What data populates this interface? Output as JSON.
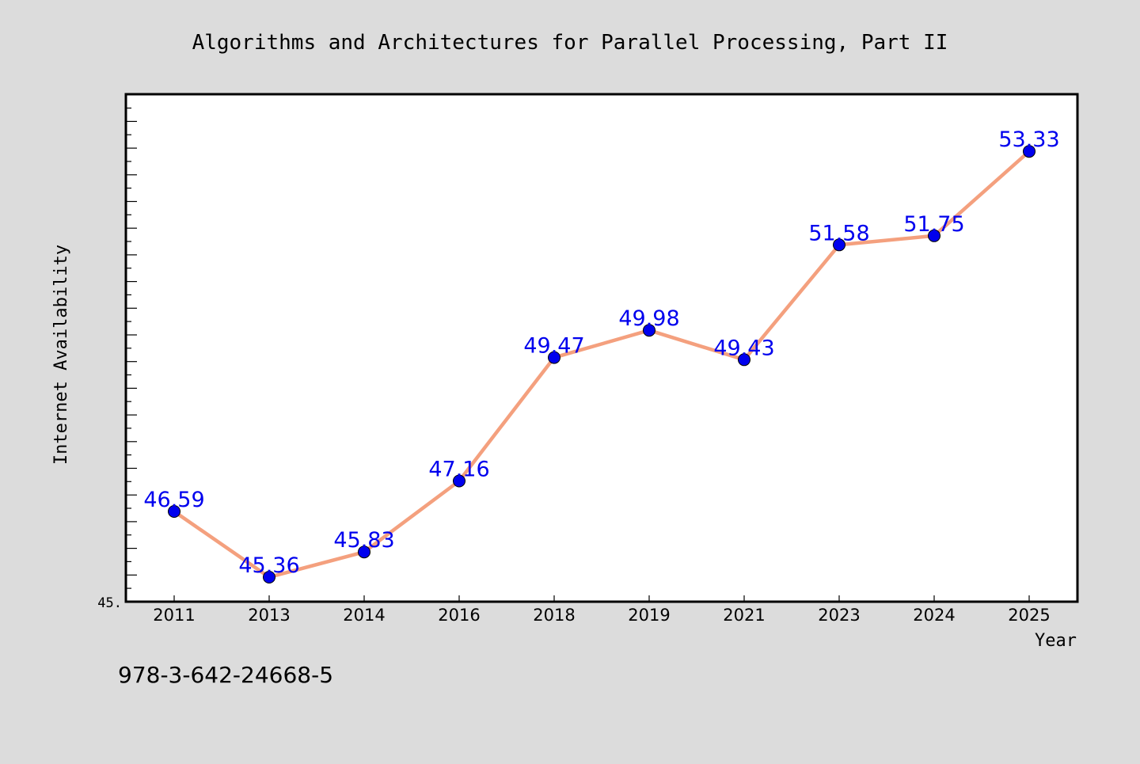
{
  "chart_data": {
    "type": "line",
    "title": "Algorithms and Architectures for Parallel Processing, Part II",
    "xlabel": "Year",
    "ylabel": "Internet Availability",
    "categories": [
      "2011",
      "2013",
      "2014",
      "2016",
      "2018",
      "2019",
      "2021",
      "2023",
      "2024",
      "2025"
    ],
    "series": [
      {
        "values": [
          46.59,
          45.36,
          45.83,
          47.16,
          49.47,
          49.98,
          49.43,
          51.58,
          51.75,
          53.33
        ],
        "labels": [
          "46.59",
          "45.36",
          "45.83",
          "47.16",
          "49.47",
          "49.98",
          "49.43",
          "51.58",
          "51.75",
          "53.33"
        ]
      }
    ],
    "ylim": [
      44.9,
      54.4
    ],
    "y_tick_label": "45.",
    "grid": false,
    "line_color": "#f4a07e",
    "marker_color": "#0000ee",
    "label_color": "#0000ee"
  },
  "footer": {
    "isbn": "978-3-642-24668-5"
  }
}
